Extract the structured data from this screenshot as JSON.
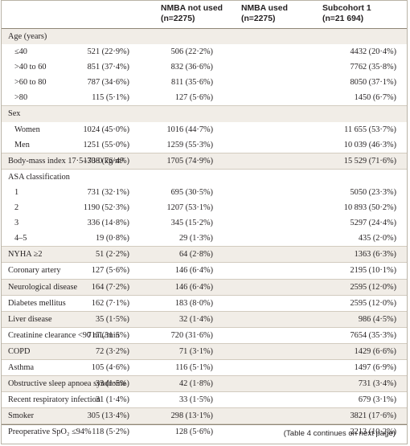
{
  "headers": {
    "col1": [
      "NMBA not used",
      "(n=2275)"
    ],
    "col2": [
      "NMBA used",
      "(n=2275)"
    ],
    "col3": [
      "Subcohort 1",
      "(n=21 694)"
    ]
  },
  "rows": [
    {
      "label": "Age (years)",
      "c1": "",
      "c2": "",
      "c3": "",
      "shaded": true,
      "sub": false,
      "band": true
    },
    {
      "label": "≤40",
      "c1": "521 (22·9%)",
      "c2": "506 (22·2%)",
      "c3": "4432 (20·4%)",
      "shaded": false,
      "sub": true,
      "band": false
    },
    {
      "label": ">40 to 60",
      "c1": "851 (37·4%)",
      "c2": "832 (36·6%)",
      "c3": "7762 (35·8%)",
      "shaded": false,
      "sub": true,
      "band": false
    },
    {
      "label": ">60 to 80",
      "c1": "787 (34·6%)",
      "c2": "811 (35·6%)",
      "c3": "8050 (37·1%)",
      "shaded": false,
      "sub": true,
      "band": false
    },
    {
      "label": ">80",
      "c1": "115 (5·1%)",
      "c2": "127 (5·6%)",
      "c3": "1450 (6·7%)",
      "shaded": false,
      "sub": true,
      "band": false
    },
    {
      "label": "Sex",
      "c1": "",
      "c2": "",
      "c3": "",
      "shaded": true,
      "sub": false,
      "band": true
    },
    {
      "label": "Women",
      "c1": "1024 (45·0%)",
      "c2": "1016 (44·7%)",
      "c3": "11 655 (53·7%)",
      "shaded": false,
      "sub": true,
      "band": false
    },
    {
      "label": "Men",
      "c1": "1251 (55·0%)",
      "c2": "1259 (55·3%)",
      "c3": "10 039 (46·3%)",
      "shaded": false,
      "sub": true,
      "band": false
    },
    {
      "label": "Body-mass index 17·5–30·0 kg/m²",
      "c1": "1738 (76·4%)",
      "c2": "1705 (74·9%)",
      "c3": "15 529 (71·6%)",
      "shaded": true,
      "sub": false,
      "band": true
    },
    {
      "label": "ASA classification",
      "c1": "",
      "c2": "",
      "c3": "",
      "shaded": false,
      "sub": false,
      "band": true
    },
    {
      "label": "1",
      "c1": "731 (32·1%)",
      "c2": "695 (30·5%)",
      "c3": "5050 (23·3%)",
      "shaded": false,
      "sub": true,
      "band": false
    },
    {
      "label": "2",
      "c1": "1190 (52·3%)",
      "c2": "1207 (53·1%)",
      "c3": "10 893 (50·2%)",
      "shaded": false,
      "sub": true,
      "band": false
    },
    {
      "label": "3",
      "c1": "336 (14·8%)",
      "c2": "345 (15·2%)",
      "c3": "5297 (24·4%)",
      "shaded": false,
      "sub": true,
      "band": false
    },
    {
      "label": "4–5",
      "c1": "19 (0·8%)",
      "c2": "29 (1·3%)",
      "c3": "435 (2·0%)",
      "shaded": false,
      "sub": true,
      "band": false
    },
    {
      "label": "NYHA ≥2",
      "c1": "51 (2·2%)",
      "c2": "64 (2·8%)",
      "c3": "1363 (6·3%)",
      "shaded": true,
      "sub": false,
      "band": true
    },
    {
      "label": "Coronary artery",
      "c1": "127 (5·6%)",
      "c2": "146 (6·4%)",
      "c3": "2195 (10·1%)",
      "shaded": false,
      "sub": false,
      "band": true
    },
    {
      "label": "Neurological disease",
      "c1": "164 (7·2%)",
      "c2": "146 (6·4%)",
      "c3": "2595 (12·0%)",
      "shaded": true,
      "sub": false,
      "band": true
    },
    {
      "label": "Diabetes mellitus",
      "c1": "162 (7·1%)",
      "c2": "183 (8·0%)",
      "c3": "2595 (12·0%)",
      "shaded": false,
      "sub": false,
      "band": true
    },
    {
      "label": "Liver disease",
      "c1": "35 (1·5%)",
      "c2": "32 (1·4%)",
      "c3": "986 (4·5%)",
      "shaded": true,
      "sub": false,
      "band": true
    },
    {
      "label": "Creatinine clearance <90 mL/min",
      "c1": "717 (31·5%)",
      "c2": "720 (31·6%)",
      "c3": "7654 (35·3%)",
      "shaded": false,
      "sub": false,
      "band": true
    },
    {
      "label": "COPD",
      "c1": "72 (3·2%)",
      "c2": "71 (3·1%)",
      "c3": "1429 (6·6%)",
      "shaded": true,
      "sub": false,
      "band": true
    },
    {
      "label": "Asthma",
      "c1": "105 (4·6%)",
      "c2": "116 (5·1%)",
      "c3": "1497 (6·9%)",
      "shaded": false,
      "sub": false,
      "band": true
    },
    {
      "label": "Obstructive sleep apnoea syndrome",
      "c1": "33 (1·5%)",
      "c2": "42 (1·8%)",
      "c3": "731 (3·4%)",
      "shaded": true,
      "sub": false,
      "band": true
    },
    {
      "label": "Recent respiratory infection",
      "c1": "31 (1·4%)",
      "c2": "33 (1·5%)",
      "c3": "679 (3·1%)",
      "shaded": false,
      "sub": false,
      "band": true
    },
    {
      "label": "Smoker",
      "c1": "305 (13·4%)",
      "c2": "298 (13·1%)",
      "c3": "3821 (17·6%)",
      "shaded": true,
      "sub": false,
      "band": true
    },
    {
      "label": "Preoperative SpO₂ ≤94%",
      "c1": "118 (5·2%)",
      "c2": "128 (5·6%)",
      "c3": "2213 (10·2%)",
      "shaded": false,
      "sub": false,
      "band": true
    }
  ],
  "footnote": "(Table 4 continues on next page)"
}
